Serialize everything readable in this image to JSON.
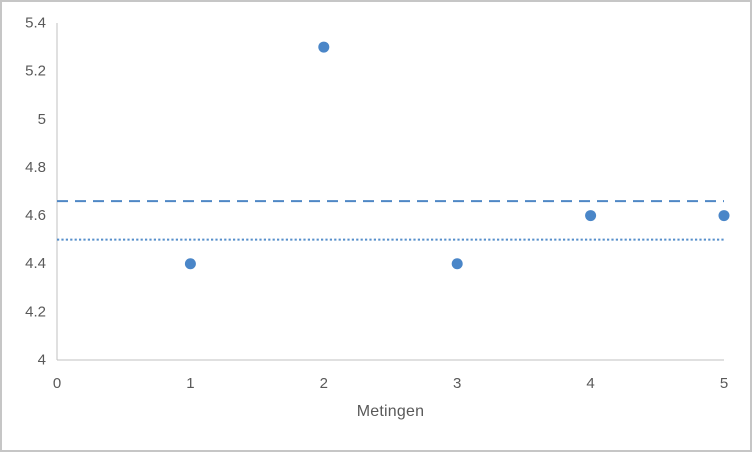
{
  "chart_data": {
    "type": "scatter",
    "title": "",
    "xlabel": "Metingen",
    "ylabel": "",
    "x": [
      1,
      2,
      3,
      4,
      5
    ],
    "y": [
      4.4,
      5.3,
      4.4,
      4.6,
      4.6
    ],
    "xlim": [
      0,
      5
    ],
    "ylim": [
      4,
      5.4
    ],
    "grid": false,
    "legend": false,
    "x_ticks": [
      {
        "value": 0,
        "label": "0"
      },
      {
        "value": 1,
        "label": "1"
      },
      {
        "value": 2,
        "label": "2"
      },
      {
        "value": 3,
        "label": "3"
      },
      {
        "value": 4,
        "label": "4"
      },
      {
        "value": 5,
        "label": "5"
      }
    ],
    "y_ticks": [
      {
        "value": 4,
        "label": "4"
      },
      {
        "value": 4.2,
        "label": "4.2"
      },
      {
        "value": 4.4,
        "label": "4.4"
      },
      {
        "value": 4.6,
        "label": "4.6"
      },
      {
        "value": 4.8,
        "label": "4.8"
      },
      {
        "value": 5,
        "label": "5"
      },
      {
        "value": 5.2,
        "label": "5.2"
      },
      {
        "value": 5.4,
        "label": "5.4"
      }
    ],
    "reference_lines": [
      {
        "name": "mean-dashed",
        "style": "dashed",
        "value": 4.66,
        "color": "#4f87c5"
      },
      {
        "name": "target-dotted",
        "style": "dotted",
        "value": 4.5,
        "color": "#568fcb"
      }
    ],
    "colors": {
      "marker": "#4a86c8",
      "axis_line": "#c0c0c0",
      "tick_label": "#595959",
      "axis_title": "#595959",
      "frame_border": "#c6c6c6",
      "background": "#ffffff"
    },
    "marker_radius": 5.5
  }
}
